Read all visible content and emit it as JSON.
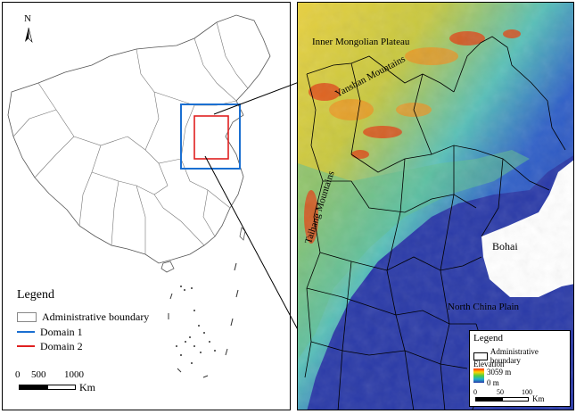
{
  "left_map": {
    "north_label": "N",
    "legend_title": "Legend",
    "legend_items": [
      {
        "label": "Administrative boundary",
        "symbol": "box",
        "color": "#888888"
      },
      {
        "label": "Domain 1",
        "symbol": "line",
        "color": "#1a6fd1"
      },
      {
        "label": "Domain 2",
        "symbol": "line",
        "color": "#e02020"
      }
    ],
    "scale": {
      "ticks": [
        "0",
        "500",
        "1000"
      ],
      "unit": "Km"
    }
  },
  "right_map": {
    "labels": {
      "inner_mongolian_plateau": "Inner Mongolian Plateau",
      "yanshan_mountains": "Yanshan Mountains",
      "taihang_mountains": "Taihang Mountains",
      "bohai": "Bohai",
      "north_china_plain": "North China Plain"
    },
    "legend": {
      "title": "Legend",
      "boundary_label": "Administrative boundary",
      "elevation_label": "Elevation",
      "max_label": "3059 m",
      "min_label": "0 m",
      "scale_ticks": [
        "0",
        "50",
        "100"
      ],
      "scale_unit": "Km"
    }
  },
  "colors": {
    "domain1": "#1a6fd1",
    "domain2": "#e02020",
    "sea": "#2a3aa8",
    "high": "#e03010",
    "mid": "#e8d040",
    "low": "#50b8d8"
  }
}
